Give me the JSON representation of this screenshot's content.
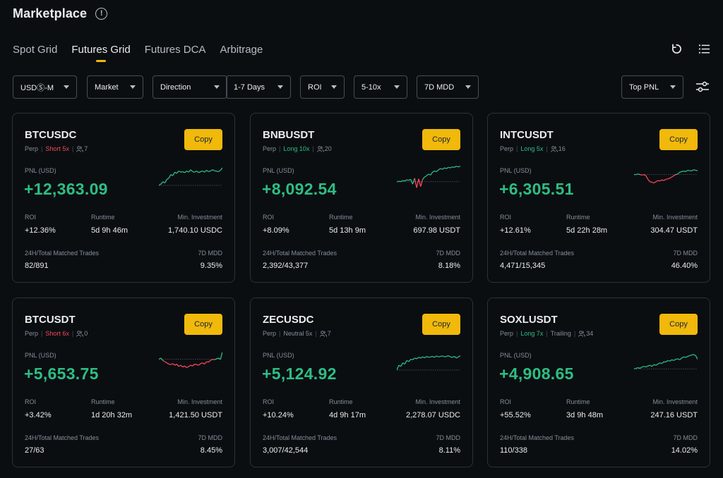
{
  "header": {
    "title": "Marketplace",
    "info_icon": "!"
  },
  "tabs": [
    {
      "label": "Spot Grid",
      "active": false
    },
    {
      "label": "Futures Grid",
      "active": true
    },
    {
      "label": "Futures DCA",
      "active": false
    },
    {
      "label": "Arbitrage",
      "active": false
    }
  ],
  "top_icons": [
    "refresh-icon",
    "list-icon"
  ],
  "filters": {
    "usd_m": "USDⓈ-M",
    "market": "Market",
    "direction": "Direction",
    "days": "1-7 Days",
    "roi": "ROI",
    "leverage": "5-10x",
    "mdd": "7D MDD",
    "sort": "Top PNL"
  },
  "labels": {
    "copy": "Copy",
    "pnl": "PNL (USD)",
    "roi": "ROI",
    "runtime": "Runtime",
    "min_investment": "Min. Investment",
    "matched_trades": "24H/Total Matched Trades",
    "mdd": "7D MDD"
  },
  "colors": {
    "accent": "#f0b90b",
    "up": "#2ebd85",
    "down": "#f6465d",
    "bg": "#0b0e11"
  },
  "cards": [
    {
      "symbol": "BTCUSDC",
      "perp": "Perp",
      "direction": "Short 5x",
      "direction_type": "short",
      "trailing": "",
      "users": "7",
      "pnl": "+12,363.09",
      "roi": "+12.36%",
      "runtime": "5d 9h 46m",
      "min_investment": "1,740.10 USDC",
      "matched_trades": "82/891",
      "mdd": "9.35%",
      "sparkline": [
        0.15,
        0.2,
        0.3,
        0.25,
        0.4,
        0.45,
        0.6,
        0.55,
        0.7,
        0.65,
        0.75,
        0.7,
        0.72,
        0.68,
        0.75,
        0.7,
        0.8,
        0.72,
        0.7,
        0.75,
        0.68,
        0.72,
        0.75,
        0.7,
        0.78,
        0.72,
        0.75,
        0.8,
        0.76,
        0.74,
        0.72,
        0.78,
        0.88
      ]
    },
    {
      "symbol": "BNBUSDT",
      "perp": "Perp",
      "direction": "Long 10x",
      "direction_type": "long",
      "trailing": "",
      "users": "20",
      "pnl": "+8,092.54",
      "roi": "+8.09%",
      "runtime": "5d 13h 9m",
      "min_investment": "697.98 USDT",
      "matched_trades": "2,392/43,377",
      "mdd": "8.18%",
      "sparkline": [
        0.3,
        0.32,
        0.3,
        0.35,
        0.33,
        0.38,
        0.36,
        0.4,
        0.2,
        0.45,
        0.05,
        0.42,
        0.1,
        0.4,
        0.5,
        0.55,
        0.62,
        0.58,
        0.7,
        0.75,
        0.72,
        0.8,
        0.85,
        0.82,
        0.88,
        0.85,
        0.9,
        0.88,
        0.92,
        0.9,
        0.95,
        0.92,
        0.95
      ]
    },
    {
      "symbol": "INTCUSDT",
      "perp": "Perp",
      "direction": "Long 5x",
      "direction_type": "long",
      "trailing": "",
      "users": "16",
      "pnl": "+6,305.51",
      "roi": "+12.61%",
      "runtime": "5d 22h 28m",
      "min_investment": "304.47 USDT",
      "matched_trades": "4,471/15,345",
      "mdd": "46.40%",
      "sparkline": [
        0.6,
        0.6,
        0.62,
        0.6,
        0.58,
        0.6,
        0.55,
        0.4,
        0.3,
        0.28,
        0.25,
        0.3,
        0.35,
        0.33,
        0.38,
        0.35,
        0.4,
        0.42,
        0.45,
        0.5,
        0.55,
        0.6,
        0.62,
        0.7,
        0.72,
        0.75,
        0.72,
        0.78,
        0.76,
        0.75,
        0.8,
        0.78,
        0.76
      ]
    },
    {
      "symbol": "BTCUSDT",
      "perp": "Perp",
      "direction": "Short 6x",
      "direction_type": "short",
      "trailing": "",
      "users": "0",
      "pnl": "+5,653.75",
      "roi": "+3.42%",
      "runtime": "1d 20h 32m",
      "min_investment": "1,421.50 USDT",
      "matched_trades": "27/63",
      "mdd": "8.45%",
      "sparkline": [
        0.6,
        0.65,
        0.55,
        0.5,
        0.45,
        0.4,
        0.38,
        0.42,
        0.35,
        0.4,
        0.3,
        0.35,
        0.28,
        0.32,
        0.25,
        0.3,
        0.35,
        0.32,
        0.4,
        0.38,
        0.35,
        0.42,
        0.45,
        0.4,
        0.5,
        0.48,
        0.55,
        0.6,
        0.58,
        0.62,
        0.65,
        0.6,
        0.9
      ]
    },
    {
      "symbol": "ZECUSDC",
      "perp": "Perp",
      "direction": "Neutral 5x",
      "direction_type": "neutral",
      "trailing": "",
      "users": "7",
      "pnl": "+5,124.92",
      "roi": "+10.24%",
      "runtime": "4d 9h 17m",
      "min_investment": "2,278.07 USDC",
      "matched_trades": "3,007/42,544",
      "mdd": "8.11%",
      "sparkline": [
        0.15,
        0.35,
        0.3,
        0.45,
        0.4,
        0.55,
        0.5,
        0.6,
        0.58,
        0.65,
        0.62,
        0.68,
        0.65,
        0.7,
        0.66,
        0.72,
        0.68,
        0.7,
        0.72,
        0.68,
        0.74,
        0.7,
        0.72,
        0.74,
        0.7,
        0.72,
        0.75,
        0.7,
        0.68,
        0.72,
        0.65,
        0.7,
        0.75
      ]
    },
    {
      "symbol": "SOXLUSDT",
      "perp": "Perp",
      "direction": "Long 7x",
      "direction_type": "long",
      "trailing": "Trailing",
      "users": "34",
      "pnl": "+4,908.65",
      "roi": "+55.52%",
      "runtime": "3d 9h 48m",
      "min_investment": "247.16 USDT",
      "matched_trades": "110/338",
      "mdd": "14.02%",
      "sparkline": [
        0.2,
        0.22,
        0.25,
        0.22,
        0.28,
        0.3,
        0.28,
        0.32,
        0.35,
        0.3,
        0.38,
        0.35,
        0.4,
        0.45,
        0.42,
        0.5,
        0.48,
        0.55,
        0.52,
        0.58,
        0.55,
        0.6,
        0.62,
        0.58,
        0.65,
        0.7,
        0.68,
        0.72,
        0.75,
        0.78,
        0.8,
        0.76,
        0.6
      ]
    }
  ]
}
